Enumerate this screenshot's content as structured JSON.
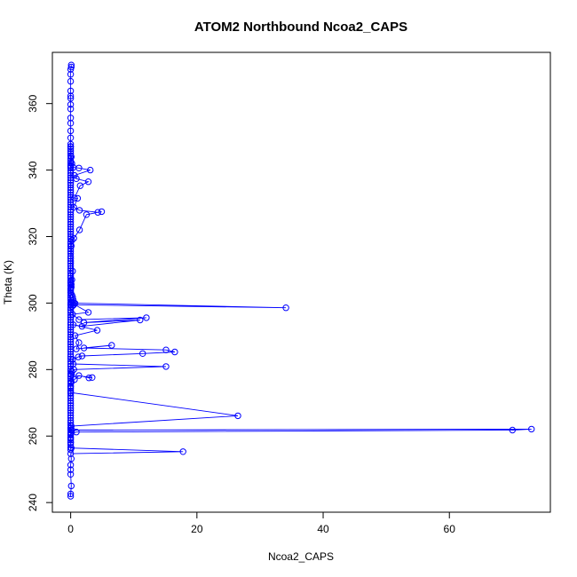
{
  "chart_data": {
    "type": "line",
    "title": "ATOM2 Northbound Ncoa2_CAPS",
    "xlabel": "Ncoa2_CAPS",
    "ylabel": "Theta (K)",
    "xlim": [
      -2.9,
      76.0
    ],
    "ylim": [
      237.1,
      375.4
    ],
    "xticks": [
      0,
      20,
      40,
      60
    ],
    "yticks": [
      240,
      260,
      280,
      300,
      320,
      340,
      360
    ],
    "series_color": "#0000ff",
    "marker": "open-circle",
    "grid": false,
    "series": [
      {
        "name": "Ncoa2_CAPS",
        "x": [
          0.1,
          0.1,
          0.0,
          0.0,
          0.0,
          0.0,
          0.0,
          0.0,
          0.0,
          0.0,
          0.0,
          0.0,
          0.0,
          0.0,
          0.0,
          0.0,
          0.0,
          0.0,
          0.0,
          0.0,
          0.0,
          0.0,
          0.0,
          0.0,
          0.0,
          0.0,
          0.0,
          0.0,
          0.0,
          0.0,
          0.0,
          0.0,
          0.0,
          0.0,
          0.0,
          0.0,
          0.0,
          0.0,
          0.0,
          0.0,
          0.0,
          0.0,
          0.0,
          0.0,
          0.0,
          0.0,
          0.0,
          0.0,
          0.0,
          0.0,
          0.0,
          0.0,
          0.0,
          0.0,
          0.0,
          0.0,
          0.0,
          0.0,
          0.0,
          0.0,
          0.0,
          0.0,
          0.0,
          0.0,
          0.0,
          0.0,
          0.0,
          0.0,
          0.0,
          0.0,
          0.0,
          0.0,
          0.0,
          0.0,
          0.0,
          0.0,
          0.0,
          0.0,
          0.0,
          0.0,
          0.0,
          0.0,
          0.0,
          0.0,
          0.0,
          0.0,
          0.0,
          0.0,
          0.0,
          0.0,
          0.0,
          0.0,
          0.0,
          0.0,
          0.0,
          0.0,
          0.0,
          0.0,
          0.0,
          0.0,
          0.0,
          0.0,
          0.0,
          0.0,
          0.0,
          0.0,
          0.0,
          0.0,
          0.0,
          0.0,
          0.0,
          0.0,
          0.0,
          0.0,
          0.0,
          0.0,
          0.0,
          0.0,
          0.0,
          0.0,
          0.0,
          0.0,
          0.0,
          0.0,
          0.0,
          0.0,
          0.0,
          0.0,
          0.0,
          0.0,
          0.0,
          0.0,
          0.0,
          0.0,
          0.0,
          0.0,
          0.0,
          0.0,
          0.0,
          0.0,
          0.0,
          0.1,
          0.2,
          0.0,
          0.4,
          1.3,
          3.1,
          0.6,
          0.9,
          2.8,
          1.5,
          0.6,
          1.1,
          0.5,
          1.4,
          4.3,
          4.9,
          2.5,
          1.4,
          0.5,
          0.2,
          0.1,
          0.3,
          0.2,
          0.0,
          0.0,
          0.1,
          0.0,
          0.1,
          0.0,
          0.0,
          0.2,
          0.3,
          0.4,
          0.2,
          0.5,
          0.7,
          0.4,
          0.0,
          0.2,
          0.1,
          0.5,
          34.1,
          0.2,
          2.8,
          0.3,
          1.3,
          12.0,
          2.1,
          11.0,
          1.8,
          0.4,
          4.2,
          0.7,
          1.3,
          0.9,
          6.5,
          2.1,
          15.1,
          16.5,
          11.4,
          1.8,
          1.2,
          0.3,
          0.4,
          15.1,
          0.5,
          0.2,
          0.1,
          3.4,
          2.9,
          1.3,
          0.6,
          0.1,
          0.0,
          0.0,
          26.5,
          0.1,
          0.0,
          0.2,
          73.0,
          70.0,
          0.9,
          0.0,
          0.0,
          0.0,
          0.1,
          17.8,
          0.0,
          0.1,
          0.0,
          0.0,
          0.0,
          0.1,
          0.0,
          0.0
        ],
        "y": [
          371.6,
          371.0,
          370.3,
          368.8,
          366.7,
          363.8,
          362.3,
          361.6,
          359.7,
          358.4,
          355.7,
          354.1,
          351.8,
          349.7,
          347.8,
          347.1,
          346.4,
          345.7,
          345.0,
          344.3,
          343.5,
          342.8,
          342.1,
          341.4,
          340.6,
          339.9,
          339.1,
          338.4,
          337.7,
          336.9,
          336.2,
          335.5,
          334.7,
          334.0,
          333.3,
          332.5,
          331.8,
          331.1,
          330.3,
          329.6,
          328.9,
          328.1,
          327.4,
          326.6,
          325.9,
          325.2,
          324.4,
          323.7,
          323.0,
          322.2,
          321.5,
          320.8,
          320.0,
          319.3,
          318.5,
          317.8,
          317.1,
          316.3,
          315.6,
          314.9,
          314.1,
          313.4,
          312.6,
          311.9,
          311.2,
          310.4,
          309.7,
          309.0,
          308.2,
          307.5,
          306.8,
          306.0,
          305.3,
          304.5,
          303.8,
          303.1,
          302.3,
          301.6,
          300.9,
          300.1,
          299.4,
          298.6,
          297.9,
          297.2,
          296.4,
          295.7,
          295.0,
          294.2,
          293.5,
          292.7,
          292.0,
          291.3,
          290.5,
          289.8,
          289.1,
          288.3,
          287.6,
          286.9,
          286.1,
          285.4,
          284.6,
          283.9,
          283.2,
          282.4,
          281.7,
          281.0,
          280.2,
          279.5,
          278.7,
          278.0,
          277.3,
          276.5,
          275.8,
          275.1,
          274.3,
          273.6,
          272.8,
          272.1,
          271.4,
          270.6,
          269.9,
          269.2,
          268.4,
          267.7,
          267.0,
          266.2,
          265.5,
          264.7,
          264.0,
          263.3,
          262.5,
          261.8,
          261.1,
          260.3,
          259.6,
          258.8,
          258.1,
          257.4,
          256.6,
          255.9,
          347.0,
          344.0,
          342.0,
          341.0,
          340.8,
          340.6,
          340.0,
          338.4,
          337.4,
          336.5,
          335.3,
          331.6,
          331.5,
          328.8,
          327.9,
          327.3,
          327.5,
          326.6,
          322.0,
          319.5,
          318.9,
          317.2,
          309.6,
          307.0,
          306.4,
          306.0,
          305.6,
          305.3,
          304.8,
          304.2,
          303.2,
          302.4,
          301.8,
          300.9,
          300.7,
          300.1,
          299.9,
          299.3,
          299.6,
          299.0,
          300.3,
          299.5,
          298.6,
          300.0,
          297.2,
          296.6,
          295.0,
          295.6,
          294.1,
          294.9,
          293.0,
          293.5,
          291.8,
          290.2,
          288.1,
          286.2,
          287.3,
          286.5,
          285.9,
          285.3,
          284.8,
          284.1,
          283.8,
          283.0,
          281.7,
          280.9,
          280.0,
          279.3,
          278.4,
          277.6,
          277.5,
          278.2,
          277.0,
          276.2,
          274.8,
          273.1,
          266.1,
          263.0,
          262.3,
          261.8,
          262.1,
          261.8,
          261.2,
          260.6,
          259.3,
          258.0,
          256.4,
          255.3,
          254.7,
          253.2,
          251.3,
          249.9,
          248.5,
          245.0,
          242.6,
          241.9
        ]
      }
    ]
  }
}
